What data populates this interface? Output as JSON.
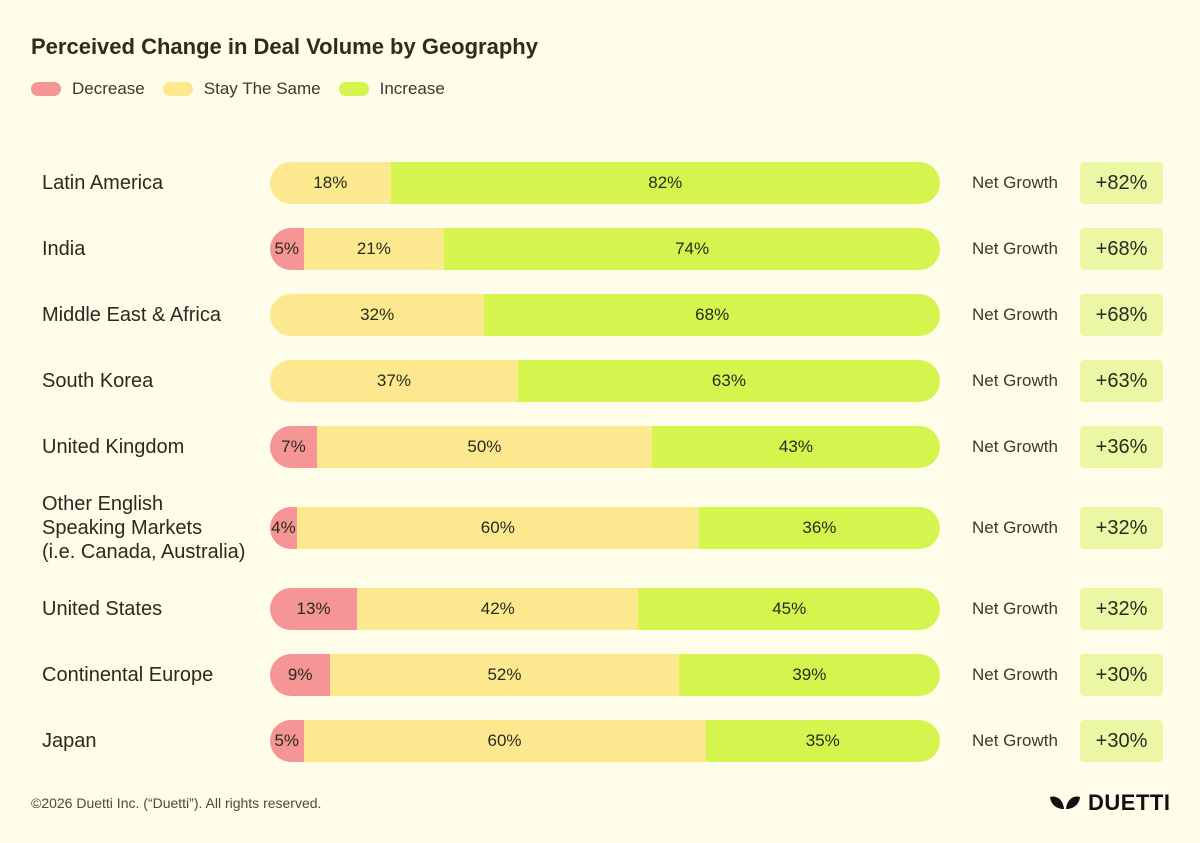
{
  "chart_data": {
    "type": "bar",
    "orientation": "horizontal",
    "stacked": true,
    "title": "Perceived Change in Deal Volume by Geography",
    "legend": [
      "Decrease",
      "Stay The Same",
      "Increase"
    ],
    "legend_position": "top-left",
    "colors": {
      "Decrease": "#f59595",
      "Stay The Same": "#fce98f",
      "Increase": "#d5f44e"
    },
    "categories": [
      "Latin America",
      "India",
      "Middle East & Africa",
      "South Korea",
      "United Kingdom",
      "Other English\nSpeaking Markets\n(i.e. Canada, Australia)",
      "United States",
      "Continental Europe",
      "Japan"
    ],
    "series": [
      {
        "name": "Decrease",
        "values": [
          0,
          5,
          0,
          0,
          7,
          4,
          13,
          9,
          5
        ]
      },
      {
        "name": "Stay The Same",
        "values": [
          18,
          21,
          32,
          37,
          50,
          60,
          42,
          52,
          60
        ]
      },
      {
        "name": "Increase",
        "values": [
          82,
          74,
          68,
          63,
          43,
          36,
          45,
          39,
          35
        ]
      }
    ],
    "net_growth_label": "Net Growth",
    "net_growth": [
      "+82%",
      "+68%",
      "+68%",
      "+63%",
      "+36%",
      "+32%",
      "+32%",
      "+30%",
      "+30%"
    ],
    "xlim": [
      0,
      100
    ]
  },
  "footer": {
    "copyright": "©2026 Duetti Inc. (“Duetti”). All rights reserved.",
    "logo_text": "DUETTI"
  }
}
